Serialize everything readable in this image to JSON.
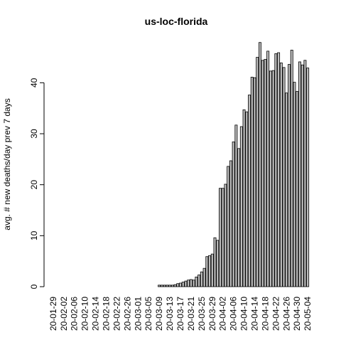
{
  "chart_data": {
    "type": "bar",
    "title": "us-loc-florida",
    "y_label": "avg. # new deaths/day prev  7  days",
    "categories": [
      "20-01-29",
      null,
      null,
      null,
      "20-02-02",
      null,
      null,
      null,
      "20-02-06",
      null,
      null,
      null,
      "20-02-10",
      null,
      null,
      null,
      "20-02-14",
      null,
      null,
      null,
      "20-02-18",
      null,
      null,
      null,
      "20-02-22",
      null,
      null,
      null,
      "20-02-26",
      null,
      null,
      null,
      "20-03-01",
      null,
      null,
      null,
      "20-03-05",
      null,
      null,
      null,
      "20-03-09",
      null,
      null,
      null,
      "20-03-13",
      null,
      null,
      null,
      "20-03-17",
      null,
      null,
      null,
      "20-03-21",
      null,
      null,
      null,
      "20-03-25",
      null,
      null,
      null,
      "20-03-29",
      null,
      null,
      null,
      "20-04-02",
      null,
      null,
      null,
      "20-04-06",
      null,
      null,
      null,
      "20-04-10",
      null,
      null,
      null,
      "20-04-14",
      null,
      null,
      null,
      "20-04-18",
      null,
      null,
      null,
      "20-04-22",
      null,
      null,
      null,
      "20-04-26",
      null,
      null,
      null,
      "20-04-30",
      null,
      null,
      null,
      "20-05-04"
    ],
    "values": [
      0,
      0,
      0,
      0,
      0,
      0,
      0,
      0,
      0,
      0,
      0,
      0,
      0,
      0,
      0,
      0,
      0,
      0,
      0,
      0,
      0,
      0,
      0,
      0,
      0,
      0,
      0,
      0,
      0,
      0,
      0,
      0,
      0,
      0,
      0,
      0,
      0,
      0,
      0,
      0,
      0.3,
      0.3,
      0.3,
      0.3,
      0.3,
      0.3,
      0.4,
      0.6,
      0.7,
      0.9,
      1.1,
      1.3,
      1.4,
      1.3,
      1.9,
      2.3,
      2.9,
      3.6,
      5.9,
      6.1,
      6.4,
      9.6,
      9.1,
      19.3,
      19.3,
      20.1,
      23.6,
      24.7,
      28.4,
      31.7,
      27.1,
      31.4,
      34.7,
      34.3,
      37.6,
      41.1,
      41.0,
      45.0,
      47.9,
      44.4,
      44.6,
      46.2,
      42.3,
      42.4,
      45.7,
      45.9,
      43.9,
      43.0,
      38.0,
      43.6,
      46.4,
      40.1,
      38.3,
      44.1,
      43.5,
      44.4,
      42.9
    ],
    "color": "#bebebe",
    "ylim": [
      0,
      48
    ],
    "yticks": [
      0,
      10,
      20,
      30,
      40
    ]
  }
}
